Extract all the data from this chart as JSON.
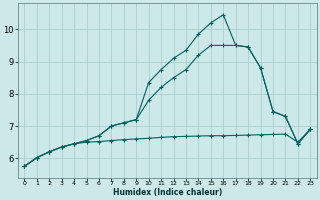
{
  "title": "",
  "xlabel": "Humidex (Indice chaleur)",
  "ylabel": "",
  "bg_color": "#cce8e8",
  "grid_color": "#aacece",
  "line_color": "#006060",
  "xlim": [
    -0.5,
    23.5
  ],
  "ylim": [
    5.4,
    10.8
  ],
  "xticks": [
    0,
    1,
    2,
    3,
    4,
    5,
    6,
    7,
    8,
    9,
    10,
    11,
    12,
    13,
    14,
    15,
    16,
    17,
    18,
    19,
    20,
    21,
    22,
    23
  ],
  "yticks": [
    6,
    7,
    8,
    9,
    10
  ],
  "line1_x": [
    0,
    1,
    2,
    3,
    4,
    5,
    6,
    7,
    8,
    9,
    10,
    11,
    12,
    13,
    14,
    15,
    16,
    17,
    18,
    19,
    20,
    21,
    22,
    23
  ],
  "line1_y": [
    5.75,
    6.02,
    6.2,
    6.35,
    6.45,
    6.5,
    6.52,
    6.55,
    6.58,
    6.6,
    6.62,
    6.65,
    6.67,
    6.68,
    6.69,
    6.7,
    6.7,
    6.71,
    6.72,
    6.73,
    6.74,
    6.75,
    6.5,
    6.9
  ],
  "line2_x": [
    0,
    1,
    2,
    3,
    4,
    5,
    6,
    7,
    8,
    9,
    10,
    11,
    12,
    13,
    14,
    15,
    16,
    17,
    18,
    19,
    20,
    21,
    22,
    23
  ],
  "line2_y": [
    5.75,
    6.02,
    6.2,
    6.35,
    6.45,
    6.55,
    6.7,
    7.0,
    7.1,
    7.2,
    8.35,
    8.75,
    9.1,
    9.35,
    9.85,
    10.2,
    10.45,
    9.5,
    9.45,
    8.8,
    7.45,
    7.3,
    6.45,
    6.9
  ],
  "line3_x": [
    0,
    1,
    2,
    3,
    4,
    5,
    6,
    7,
    8,
    9,
    10,
    11,
    12,
    13,
    14,
    15,
    16,
    17,
    18,
    19,
    20,
    21,
    22,
    23
  ],
  "line3_y": [
    5.75,
    6.02,
    6.2,
    6.35,
    6.45,
    6.55,
    6.7,
    7.0,
    7.1,
    7.2,
    7.8,
    8.2,
    8.5,
    8.75,
    9.2,
    9.5,
    9.5,
    9.5,
    9.45,
    8.8,
    7.45,
    7.3,
    6.45,
    6.9
  ],
  "figsize": [
    3.2,
    2.0
  ],
  "dpi": 100
}
